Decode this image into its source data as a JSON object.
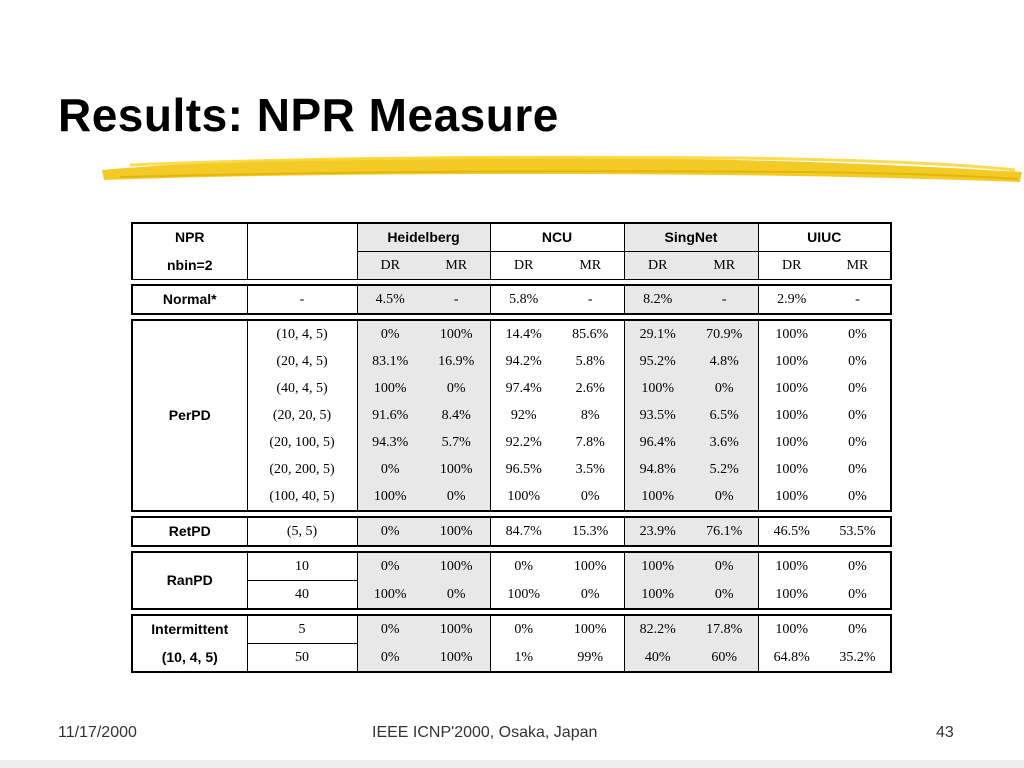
{
  "slide": {
    "title": "Results: NPR Measure",
    "accent_color": "#f2c200"
  },
  "table": {
    "corner_line1": "NPR",
    "corner_line2": "nbin=2",
    "groups": [
      "Heidelberg",
      "NCU",
      "SingNet",
      "UIUC"
    ],
    "subheaders": [
      "DR",
      "MR",
      "DR",
      "MR",
      "DR",
      "MR",
      "DR",
      "MR"
    ],
    "sections": [
      {
        "label": [
          "Normal*"
        ],
        "rows": [
          {
            "param": "-",
            "values": [
              "4.5%",
              "-",
              "5.8%",
              "-",
              "8.2%",
              "-",
              "2.9%",
              "-"
            ]
          }
        ]
      },
      {
        "label": [
          "PerPD"
        ],
        "rows": [
          {
            "param": "(10, 4, 5)",
            "values": [
              "0%",
              "100%",
              "14.4%",
              "85.6%",
              "29.1%",
              "70.9%",
              "100%",
              "0%"
            ]
          },
          {
            "param": "(20, 4, 5)",
            "values": [
              "83.1%",
              "16.9%",
              "94.2%",
              "5.8%",
              "95.2%",
              "4.8%",
              "100%",
              "0%"
            ]
          },
          {
            "param": "(40, 4, 5)",
            "values": [
              "100%",
              "0%",
              "97.4%",
              "2.6%",
              "100%",
              "0%",
              "100%",
              "0%"
            ]
          },
          {
            "param": "(20, 20, 5)",
            "values": [
              "91.6%",
              "8.4%",
              "92%",
              "8%",
              "93.5%",
              "6.5%",
              "100%",
              "0%"
            ]
          },
          {
            "param": "(20, 100, 5)",
            "values": [
              "94.3%",
              "5.7%",
              "92.2%",
              "7.8%",
              "96.4%",
              "3.6%",
              "100%",
              "0%"
            ]
          },
          {
            "param": "(20, 200, 5)",
            "values": [
              "0%",
              "100%",
              "96.5%",
              "3.5%",
              "94.8%",
              "5.2%",
              "100%",
              "0%"
            ]
          },
          {
            "param": "(100, 40, 5)",
            "values": [
              "100%",
              "0%",
              "100%",
              "0%",
              "100%",
              "0%",
              "100%",
              "0%"
            ]
          }
        ]
      },
      {
        "label": [
          "RetPD"
        ],
        "rows": [
          {
            "param": "(5, 5)",
            "values": [
              "0%",
              "100%",
              "84.7%",
              "15.3%",
              "23.9%",
              "76.1%",
              "46.5%",
              "53.5%"
            ]
          }
        ]
      },
      {
        "label": [
          "RanPD"
        ],
        "rows": [
          {
            "param": "10",
            "values": [
              "0%",
              "100%",
              "0%",
              "100%",
              "100%",
              "0%",
              "100%",
              "0%"
            ]
          },
          {
            "param": "40",
            "values": [
              "100%",
              "0%",
              "100%",
              "0%",
              "100%",
              "0%",
              "100%",
              "0%"
            ]
          }
        ]
      },
      {
        "label": [
          "Intermittent",
          "(10, 4, 5)"
        ],
        "rows": [
          {
            "param": "5",
            "values": [
              "0%",
              "100%",
              "0%",
              "100%",
              "82.2%",
              "17.8%",
              "100%",
              "0%"
            ]
          },
          {
            "param": "50",
            "values": [
              "0%",
              "100%",
              "1%",
              "99%",
              "40%",
              "60%",
              "64.8%",
              "35.2%"
            ]
          }
        ]
      }
    ]
  },
  "footer": {
    "date": "11/17/2000",
    "center": "IEEE ICNP'2000, Osaka, Japan",
    "page": "43"
  }
}
